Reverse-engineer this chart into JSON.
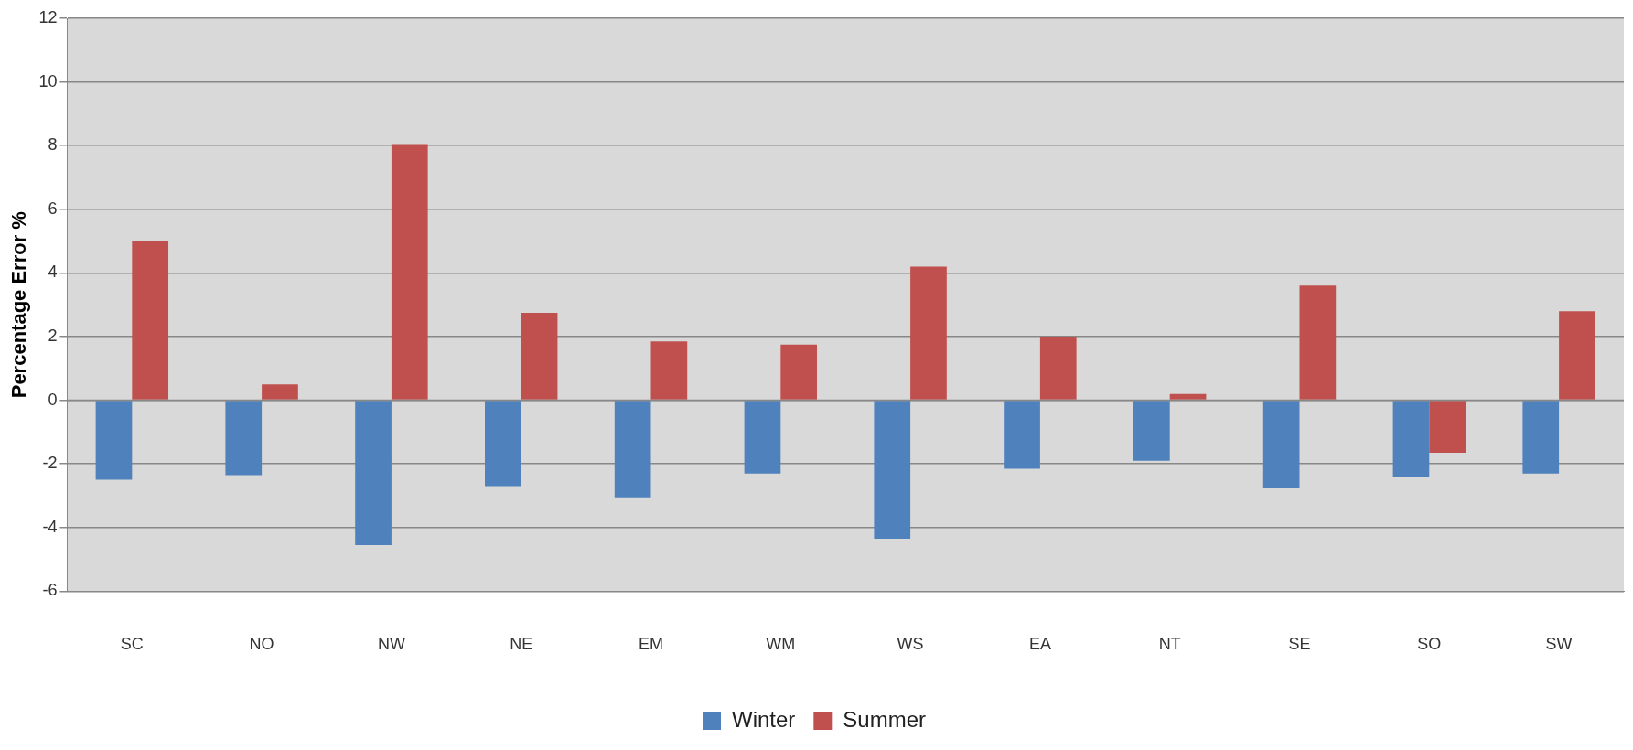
{
  "chart_data": {
    "type": "bar",
    "ylabel": "Percentage Error %",
    "categories": [
      "SC",
      "NO",
      "NW",
      "NE",
      "EM",
      "WM",
      "WS",
      "EA",
      "NT",
      "SE",
      "SO",
      "SW"
    ],
    "series": [
      {
        "name": "Winter",
        "color": "#4f81bd",
        "values": [
          -2.5,
          -2.35,
          -4.55,
          -2.7,
          -3.05,
          -2.3,
          -4.35,
          -2.15,
          -1.9,
          -2.75,
          -2.4,
          -2.3
        ]
      },
      {
        "name": "Summer",
        "color": "#c0504d",
        "values": [
          5.0,
          0.5,
          8.05,
          2.75,
          1.85,
          1.75,
          4.2,
          2.0,
          0.2,
          3.6,
          -1.65,
          2.8
        ]
      }
    ],
    "ylim": [
      -6,
      12
    ],
    "yticks": [
      -6,
      -4,
      -2,
      0,
      2,
      4,
      6,
      8,
      10,
      12
    ],
    "grid": "y",
    "legend": "bottom"
  }
}
